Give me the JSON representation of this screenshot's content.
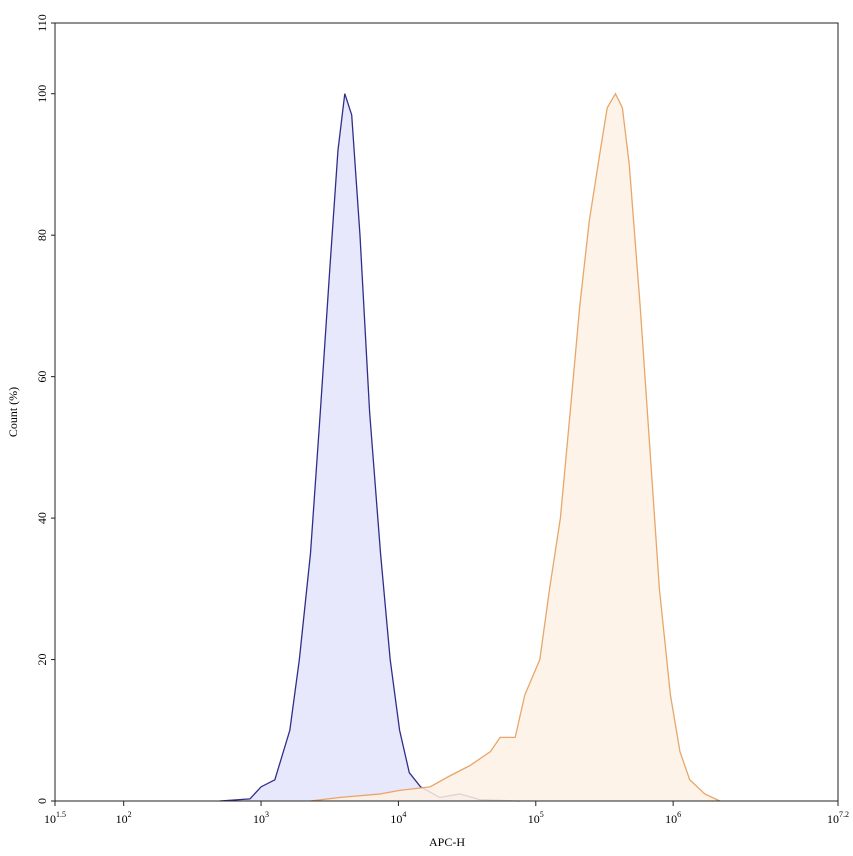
{
  "chart_data": {
    "type": "histogram-overlay",
    "x_label": "APC-H",
    "y_label": "Count (%)",
    "xscale": "log",
    "xlim": [
      31.6228,
      15848932
    ],
    "ylim": [
      0,
      110
    ],
    "xticks": [
      {
        "value": 31.6228,
        "label": "10",
        "exponent": "1.5"
      },
      {
        "value": 100,
        "label": "10",
        "exponent": "2"
      },
      {
        "value": 1000,
        "label": "10",
        "exponent": "3"
      },
      {
        "value": 10000,
        "label": "10",
        "exponent": "4"
      },
      {
        "value": 100000,
        "label": "10",
        "exponent": "5"
      },
      {
        "value": 1000000,
        "label": "10",
        "exponent": "6"
      },
      {
        "value": 15848932,
        "label": "10",
        "exponent": "7.2"
      }
    ],
    "yticks": [
      0,
      20,
      40,
      60,
      80,
      100,
      110
    ],
    "series": [
      {
        "color": "#2e2e8a",
        "fill": "#e3e4fa",
        "x": [
          500,
          830,
          1000,
          1260,
          1620,
          1900,
          2290,
          2700,
          3160,
          3630,
          4070,
          4570,
          5250,
          6170,
          7410,
          8710,
          10200,
          12000,
          14500,
          20000,
          28000,
          39000,
          76000
        ],
        "values": [
          0,
          0.3,
          2,
          3,
          10,
          20,
          35,
          55,
          75,
          92,
          100,
          97,
          80,
          55,
          35,
          20,
          10,
          4,
          2,
          0.5,
          1,
          0.2,
          0
        ]
      },
      {
        "color": "#e8a66a",
        "fill": "#fdf1e4",
        "x": [
          2290,
          3720,
          7410,
          10200,
          17000,
          23400,
          33100,
          46800,
          55000,
          70800,
          83200,
          107000,
          126000,
          151000,
          178000,
          209000,
          245000,
          295000,
          331000,
          380000,
          427000,
          479000,
          575000,
          676000,
          794000,
          955000,
          1120000,
          1320000,
          1700000,
          2190000
        ],
        "values": [
          0,
          0.5,
          1,
          1.5,
          2,
          3.5,
          5,
          7,
          9,
          9,
          15,
          20,
          30,
          40,
          55,
          70,
          82,
          92,
          98,
          100,
          98,
          90,
          70,
          50,
          30,
          15,
          7,
          3,
          1,
          0
        ]
      }
    ]
  }
}
